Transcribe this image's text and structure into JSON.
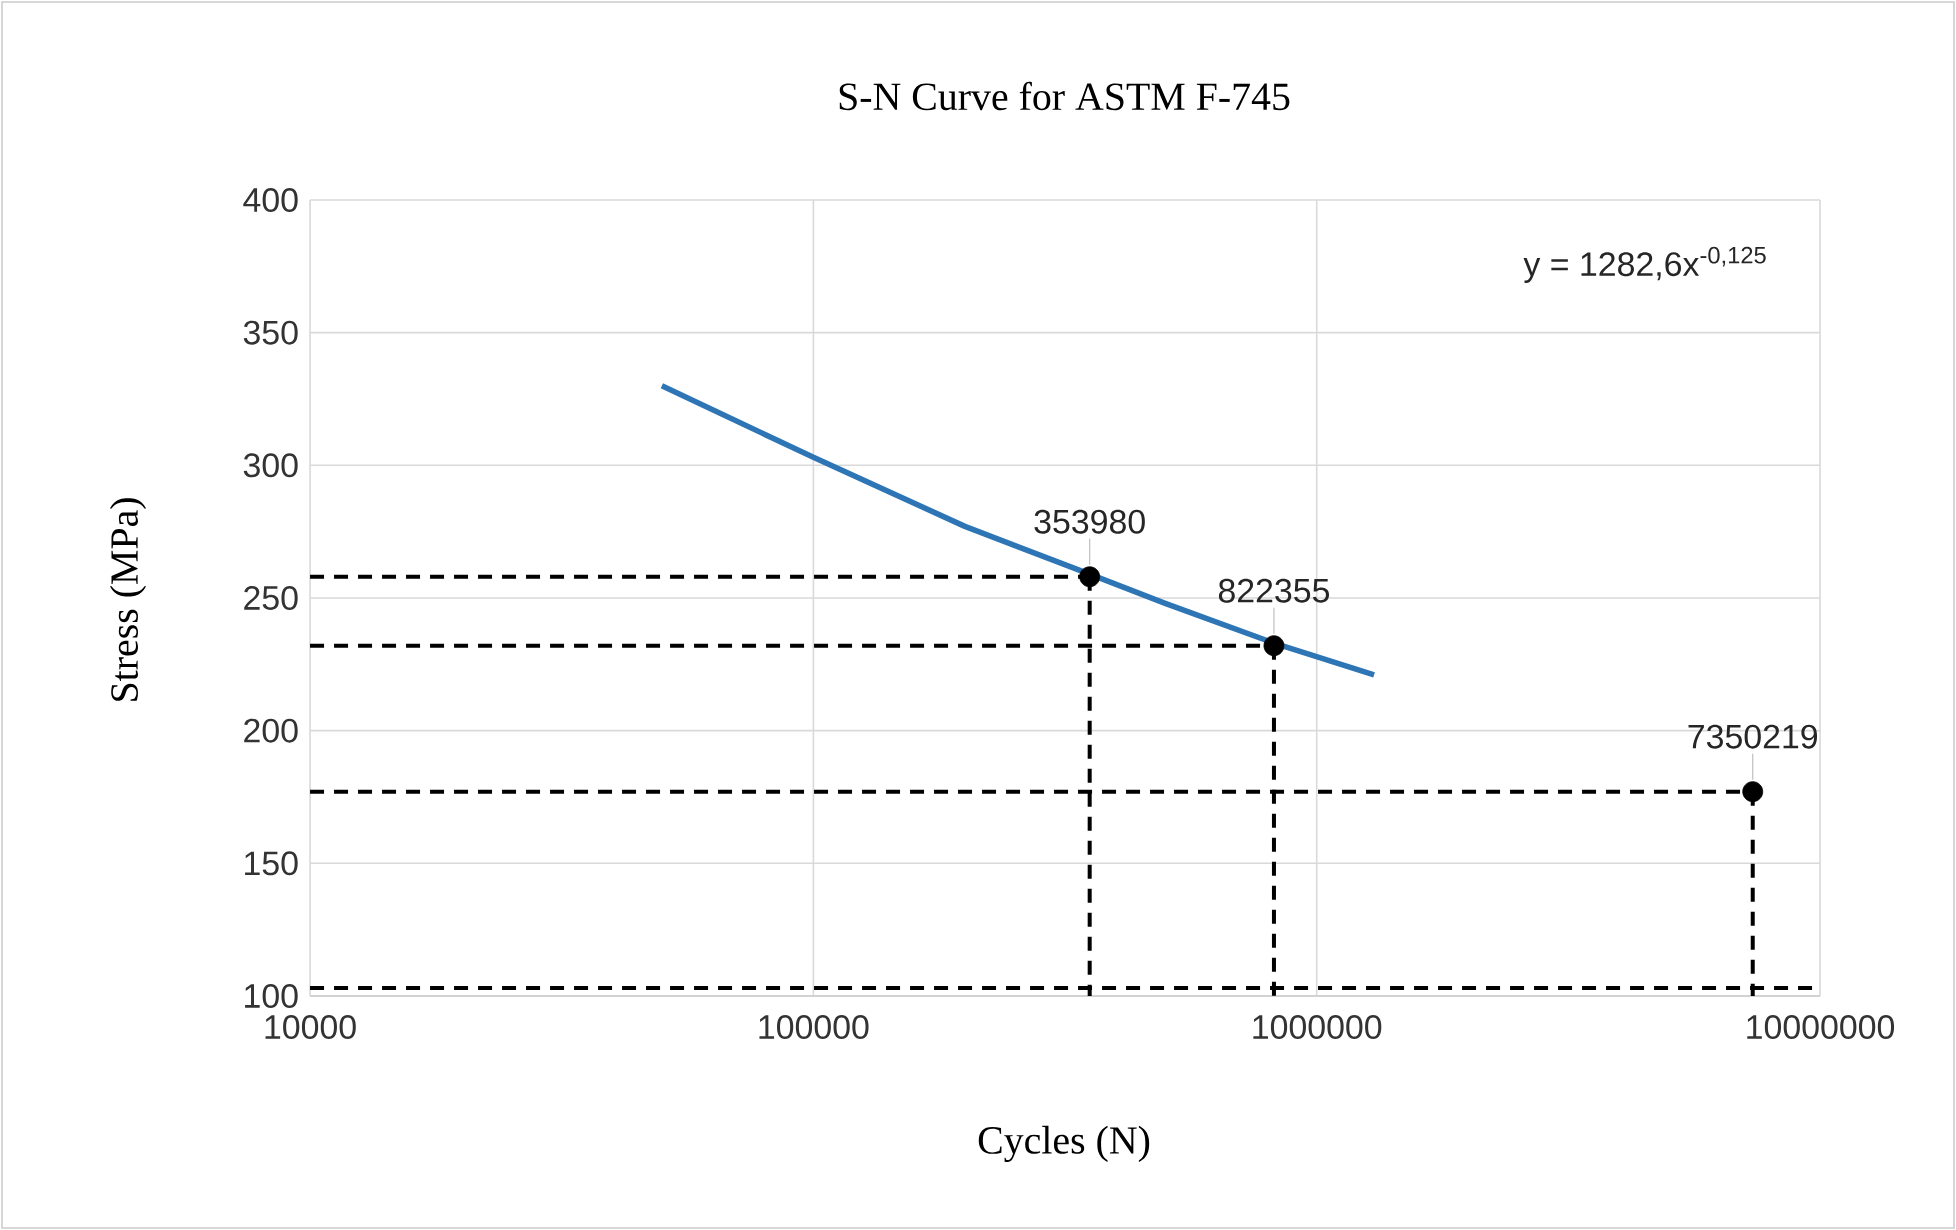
{
  "chart_data": {
    "type": "line",
    "title": "S-N Curve for ASTM F-745",
    "xlabel": "Cycles (N)",
    "ylabel": "Stress (MPa)",
    "log": "x",
    "grid": true,
    "xlim": [
      10000,
      10000000
    ],
    "xticks": [
      10000,
      100000,
      1000000,
      10000000
    ],
    "ylim": [
      100,
      400
    ],
    "yticks": [
      100,
      150,
      200,
      250,
      300,
      350,
      400
    ],
    "series": [
      {
        "color": "#2e75b6",
        "line_style": "solid",
        "marker": "none",
        "x": [
          50000,
          100000,
          200000,
          353980,
          500000,
          822355,
          1300000
        ],
        "values": [
          330,
          303,
          277,
          259,
          248,
          233,
          221
        ]
      },
      {
        "color": "#000000",
        "line_style": "dashed",
        "marker": "none",
        "x": [
          10000,
          353980
        ],
        "values": [
          258,
          258
        ]
      },
      {
        "color": "#000000",
        "line_style": "dashed",
        "marker": "none",
        "x": [
          353980,
          353980
        ],
        "values": [
          258,
          100
        ]
      },
      {
        "color": "#000000",
        "line_style": "dashed",
        "marker": "none",
        "x": [
          10000,
          822355
        ],
        "values": [
          232,
          232
        ]
      },
      {
        "color": "#000000",
        "line_style": "dashed",
        "marker": "none",
        "x": [
          822355,
          822355
        ],
        "values": [
          232,
          100
        ]
      },
      {
        "color": "#000000",
        "line_style": "dashed",
        "marker": "none",
        "x": [
          10000,
          7350219
        ],
        "values": [
          177,
          177
        ]
      },
      {
        "color": "#000000",
        "line_style": "dashed",
        "marker": "none",
        "x": [
          7350219,
          7350219
        ],
        "values": [
          177,
          100
        ]
      },
      {
        "color": "#000000",
        "line_style": "dashed",
        "marker": "none",
        "x": [
          10000,
          10000000
        ],
        "values": [
          103,
          103
        ]
      },
      {
        "type": "scatter",
        "color": "#000000",
        "marker": "circle",
        "x": [
          353980,
          822355,
          7350219
        ],
        "values": [
          258,
          232,
          177
        ]
      }
    ],
    "annotations": [
      {
        "text": "353980",
        "x": 353980,
        "y": 258
      },
      {
        "text": "822355",
        "x": 822355,
        "y": 232
      },
      {
        "text": "7350219",
        "x": 7350219,
        "y": 177
      },
      "y = 1282,6x$^{-0,125}$"
    ]
  }
}
